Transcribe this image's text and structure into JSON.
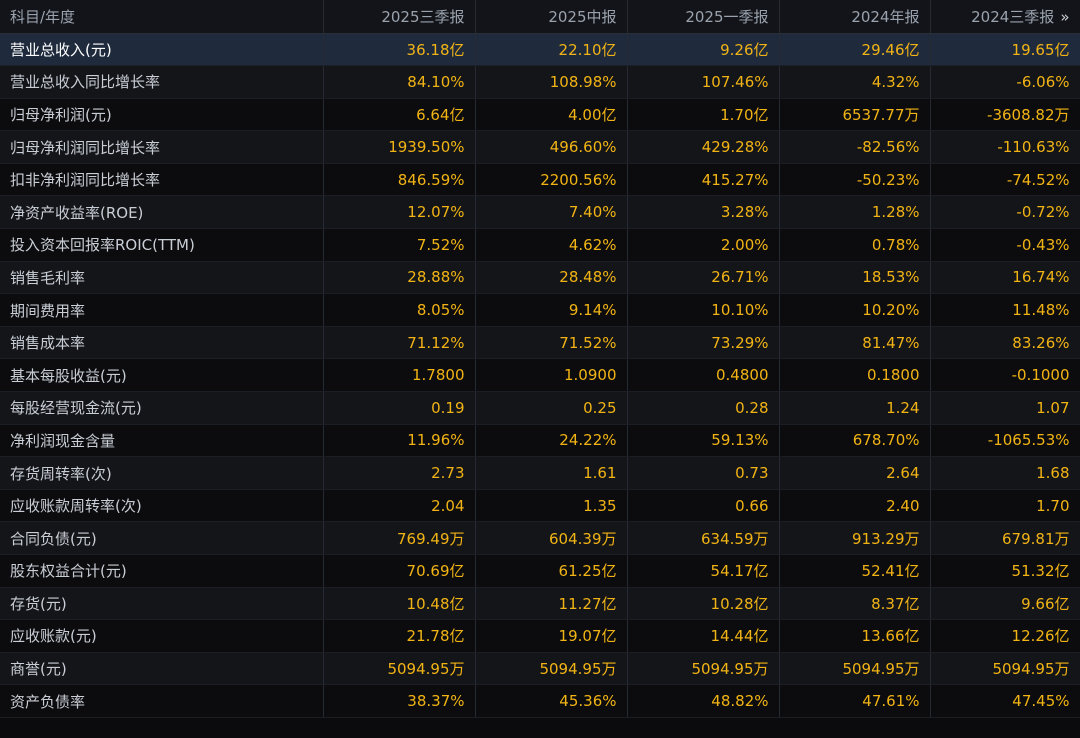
{
  "header": {
    "label_col": "科目/年度",
    "periods": [
      "2025三季报",
      "2025中报",
      "2025一季报",
      "2024年报",
      "2024三季报"
    ],
    "more_glyph": "»"
  },
  "rows": [
    {
      "label": "营业总收入(元)",
      "values": [
        "36.18亿",
        "22.10亿",
        "9.26亿",
        "29.46亿",
        "19.65亿"
      ]
    },
    {
      "label": "营业总收入同比增长率",
      "values": [
        "84.10%",
        "108.98%",
        "107.46%",
        "4.32%",
        "-6.06%"
      ]
    },
    {
      "label": "归母净利润(元)",
      "values": [
        "6.64亿",
        "4.00亿",
        "1.70亿",
        "6537.77万",
        "-3608.82万"
      ]
    },
    {
      "label": "归母净利润同比增长率",
      "values": [
        "1939.50%",
        "496.60%",
        "429.28%",
        "-82.56%",
        "-110.63%"
      ]
    },
    {
      "label": "扣非净利润同比增长率",
      "values": [
        "846.59%",
        "2200.56%",
        "415.27%",
        "-50.23%",
        "-74.52%"
      ]
    },
    {
      "label": "净资产收益率(ROE)",
      "values": [
        "12.07%",
        "7.40%",
        "3.28%",
        "1.28%",
        "-0.72%"
      ]
    },
    {
      "label": "投入资本回报率ROIC(TTM)",
      "values": [
        "7.52%",
        "4.62%",
        "2.00%",
        "0.78%",
        "-0.43%"
      ]
    },
    {
      "label": "销售毛利率",
      "values": [
        "28.88%",
        "28.48%",
        "26.71%",
        "18.53%",
        "16.74%"
      ]
    },
    {
      "label": "期间费用率",
      "values": [
        "8.05%",
        "9.14%",
        "10.10%",
        "10.20%",
        "11.48%"
      ]
    },
    {
      "label": "销售成本率",
      "values": [
        "71.12%",
        "71.52%",
        "73.29%",
        "81.47%",
        "83.26%"
      ]
    },
    {
      "label": "基本每股收益(元)",
      "values": [
        "1.7800",
        "1.0900",
        "0.4800",
        "0.1800",
        "-0.1000"
      ]
    },
    {
      "label": "每股经营现金流(元)",
      "values": [
        "0.19",
        "0.25",
        "0.28",
        "1.24",
        "1.07"
      ]
    },
    {
      "label": "净利润现金含量",
      "values": [
        "11.96%",
        "24.22%",
        "59.13%",
        "678.70%",
        "-1065.53%"
      ]
    },
    {
      "label": "存货周转率(次)",
      "values": [
        "2.73",
        "1.61",
        "0.73",
        "2.64",
        "1.68"
      ]
    },
    {
      "label": "应收账款周转率(次)",
      "values": [
        "2.04",
        "1.35",
        "0.66",
        "2.40",
        "1.70"
      ]
    },
    {
      "label": "合同负债(元)",
      "values": [
        "769.49万",
        "604.39万",
        "634.59万",
        "913.29万",
        "679.81万"
      ]
    },
    {
      "label": "股东权益合计(元)",
      "values": [
        "70.69亿",
        "61.25亿",
        "54.17亿",
        "52.41亿",
        "51.32亿"
      ]
    },
    {
      "label": "存货(元)",
      "values": [
        "10.48亿",
        "11.27亿",
        "10.28亿",
        "8.37亿",
        "9.66亿"
      ]
    },
    {
      "label": "应收账款(元)",
      "values": [
        "21.78亿",
        "19.07亿",
        "14.44亿",
        "13.66亿",
        "12.26亿"
      ]
    },
    {
      "label": "商誉(元)",
      "values": [
        "5094.95万",
        "5094.95万",
        "5094.95万",
        "5094.95万",
        "5094.95万"
      ]
    },
    {
      "label": "资产负债率",
      "values": [
        "38.37%",
        "45.36%",
        "48.82%",
        "47.61%",
        "47.45%"
      ]
    }
  ],
  "selected_row": 0,
  "colors": {
    "value": "#f2b415",
    "label": "#c9ced6",
    "header": "#9aa2ad",
    "selected_bg": "#1f2b3d"
  }
}
